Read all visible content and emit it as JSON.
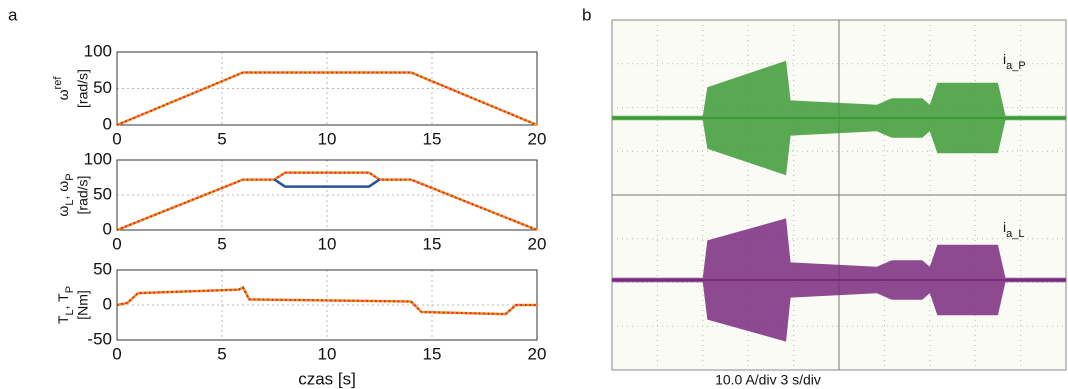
{
  "chart_data": [
    {
      "type": "line",
      "panel": "a",
      "ylabel_parts": [
        {
          "text": "ω"
        },
        {
          "text": "ref",
          "sup": true
        }
      ],
      "ylabel_unit": "[rad/s]",
      "xlim": [
        0,
        20
      ],
      "xticks": [
        0,
        5,
        10,
        15,
        20
      ],
      "ylim": [
        0,
        100
      ],
      "yticks": [
        0,
        50,
        100
      ],
      "grid": true,
      "series": [
        {
          "color": "#f08a24",
          "x": [
            0,
            6,
            14,
            20
          ],
          "y": [
            0,
            72,
            72,
            0
          ]
        }
      ]
    },
    {
      "type": "line",
      "ylabel_parts": [
        {
          "text": "ω"
        },
        {
          "text": "L",
          "sub": true
        },
        {
          "text": ", ω"
        },
        {
          "text": "P",
          "sub": true
        }
      ],
      "ylabel_unit": "[rad/s]",
      "xlim": [
        0,
        20
      ],
      "xticks": [
        0,
        5,
        10,
        15,
        20
      ],
      "ylim": [
        0,
        100
      ],
      "yticks": [
        0,
        50,
        100
      ],
      "grid": true,
      "series": [
        {
          "color": "#f08a24",
          "x": [
            0,
            6,
            7.5,
            8,
            12,
            12.5,
            14,
            20
          ],
          "y": [
            0,
            72,
            72,
            82,
            82,
            72,
            72,
            0
          ]
        },
        {
          "color": "#2d4fa0",
          "x": [
            7.5,
            8,
            12,
            12.5
          ],
          "y": [
            72,
            62,
            62,
            72
          ]
        }
      ]
    },
    {
      "type": "line",
      "ylabel_parts": [
        {
          "text": "T"
        },
        {
          "text": "L",
          "sub": true
        },
        {
          "text": ", T"
        },
        {
          "text": "P",
          "sub": true
        }
      ],
      "ylabel_unit": "[Nm]",
      "xlabel": "czas [s]",
      "xlim": [
        0,
        20
      ],
      "xticks": [
        0,
        5,
        10,
        15,
        20
      ],
      "ylim": [
        -50,
        50
      ],
      "yticks": [
        -50,
        0,
        50
      ],
      "grid": true,
      "series": [
        {
          "color": "#f08a24",
          "x": [
            0,
            0.5,
            1,
            5.8,
            6,
            6.3,
            14,
            14.5,
            18.5,
            19,
            20
          ],
          "y": [
            0,
            3,
            17,
            22,
            25,
            8,
            5,
            -10,
            -13,
            0,
            0
          ]
        }
      ]
    },
    {
      "type": "scope",
      "panel": "b",
      "scale_label": "10.0 A/div   3 s/div",
      "xlim": [
        0,
        30
      ],
      "series": [
        {
          "label_parts": [
            {
              "text": "i"
            },
            {
              "text": "a_P",
              "sub": true
            }
          ],
          "color": "#3c9a35",
          "x": [
            0,
            6,
            6.3,
            11.5,
            11.8,
            17.5,
            18.5,
            20.5,
            21,
            21.5,
            25.5,
            26,
            30
          ],
          "amp": [
            0.5,
            0.5,
            7,
            13,
            4,
            3,
            4.5,
            4.5,
            3,
            8,
            8,
            0.5,
            0.5
          ]
        },
        {
          "label_parts": [
            {
              "text": "i"
            },
            {
              "text": "a_L",
              "sub": true
            }
          ],
          "color": "#7a2a7e",
          "x": [
            0,
            6,
            6.3,
            11.5,
            11.8,
            17.5,
            18.5,
            20.5,
            21,
            21.5,
            25.5,
            26,
            30
          ],
          "amp": [
            0.5,
            0.5,
            9,
            14,
            4,
            3,
            4.5,
            4.5,
            3,
            8,
            8,
            0.5,
            0.5
          ]
        }
      ]
    }
  ]
}
